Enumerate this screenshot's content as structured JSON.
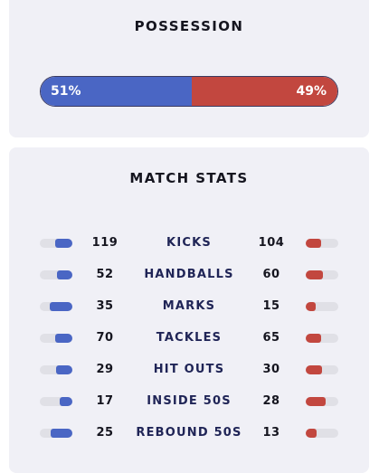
{
  "possession": {
    "title": "POSSESSION",
    "home_percent": 51,
    "away_percent": 49,
    "home_label": "51%",
    "away_label": "49%"
  },
  "match_stats": {
    "title": "MATCH STATS",
    "rows": [
      {
        "label": "KICKS",
        "home": "119",
        "away": "104"
      },
      {
        "label": "HANDBALLS",
        "home": "52",
        "away": "60"
      },
      {
        "label": "MARKS",
        "home": "35",
        "away": "15"
      },
      {
        "label": "TACKLES",
        "home": "70",
        "away": "65"
      },
      {
        "label": "HIT OUTS",
        "home": "29",
        "away": "30"
      },
      {
        "label": "INSIDE 50S",
        "home": "17",
        "away": "28"
      },
      {
        "label": "REBOUND 50S",
        "home": "25",
        "away": "13"
      }
    ]
  },
  "colors": {
    "home": "#4a66c4",
    "away": "#c2473f",
    "card_bg": "#f0f0f6"
  }
}
